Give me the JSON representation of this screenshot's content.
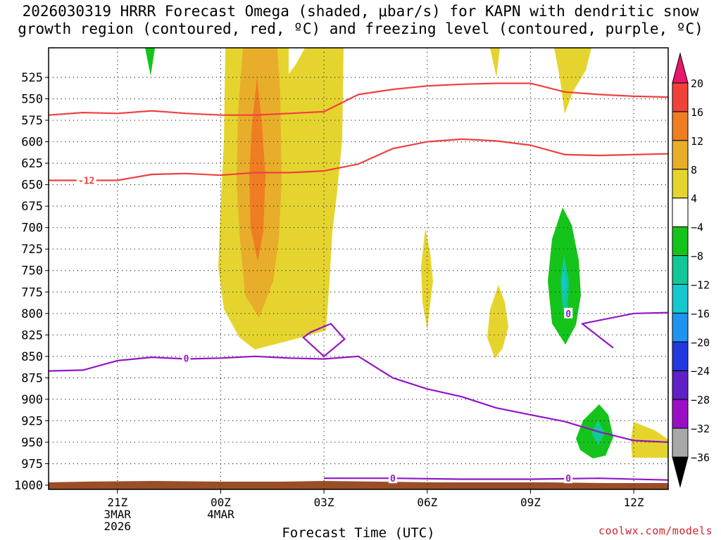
{
  "title": {
    "line1": "2026030319 HRRR Forecast Omega (shaded, μbar/s) for KAPN with dendritic snow",
    "line2": "growth region (contoured, red, ºC) and freezing level (contoured, purple, ºC)"
  },
  "credit": "coolwx.com/models",
  "chart_data": {
    "type": "time-height cross section (filled contour)",
    "title": "2026030319 HRRR Forecast Omega (shaded, μbar/s) for KAPN with dendritic snow growth region (contoured, red, ºC) and freezing level (contoured, purple, ºC)",
    "xlabel": "Forecast Time (UTC)",
    "ylabel": "",
    "x_range_hours_after_2026030319": [
      0,
      18
    ],
    "x_ticks": [
      {
        "hour": 2,
        "label": "21Z",
        "sub1": "3MAR",
        "sub2": "2026"
      },
      {
        "hour": 5,
        "label": "00Z",
        "sub1": "4MAR",
        "sub2": ""
      },
      {
        "hour": 8,
        "label": "03Z",
        "sub1": "",
        "sub2": ""
      },
      {
        "hour": 11,
        "label": "06Z",
        "sub1": "",
        "sub2": ""
      },
      {
        "hour": 14,
        "label": "09Z",
        "sub1": "",
        "sub2": ""
      },
      {
        "hour": 17,
        "label": "12Z",
        "sub1": "",
        "sub2": ""
      }
    ],
    "y_range_hPa": [
      1000,
      500
    ],
    "y_ticks": [
      "525",
      "550",
      "575",
      "600",
      "625",
      "650",
      "675",
      "700",
      "725",
      "750",
      "775",
      "800",
      "825",
      "850",
      "875",
      "900",
      "925",
      "950",
      "975",
      "1000"
    ],
    "colorbar": {
      "levels": [
        "20",
        "16",
        "12",
        "8",
        "4",
        "−4",
        "−8",
        "−12",
        "−16",
        "−20",
        "−24",
        "−28",
        "−32",
        "−36"
      ],
      "colors": [
        "#e8176a",
        "#f1423a",
        "#ef7e23",
        "#e8ae2b",
        "#e6d42e",
        "#ffffff",
        "#14c41a",
        "#12c896",
        "#15c8d0",
        "#1f93f0",
        "#2239e0",
        "#5f20c8",
        "#9a0fc6",
        "#a8a8a8",
        "#000000"
      ]
    },
    "contours": [
      {
        "name": "-12C (upper, dendritic)",
        "color": "#ef4040",
        "label": "",
        "points": [
          [
            0,
            569
          ],
          [
            1,
            566
          ],
          [
            2,
            567
          ],
          [
            3,
            564
          ],
          [
            4,
            567
          ],
          [
            5,
            569
          ],
          [
            6,
            569
          ],
          [
            7,
            567
          ],
          [
            8,
            565
          ],
          [
            9,
            545
          ],
          [
            10,
            539
          ],
          [
            11,
            535
          ],
          [
            12,
            533
          ],
          [
            13,
            532
          ],
          [
            14,
            532
          ],
          [
            15,
            542
          ],
          [
            16,
            545
          ],
          [
            17,
            547
          ],
          [
            18,
            548
          ]
        ]
      },
      {
        "name": "-12C (lower, dendritic)",
        "color": "#ef4040",
        "label": "-12",
        "points": [
          [
            0,
            645
          ],
          [
            1,
            645
          ],
          [
            2,
            645
          ],
          [
            3,
            638
          ],
          [
            4,
            637
          ],
          [
            5,
            639
          ],
          [
            6,
            636
          ],
          [
            7,
            636
          ],
          [
            8,
            634
          ],
          [
            9,
            626
          ],
          [
            10,
            608
          ],
          [
            11,
            600
          ],
          [
            12,
            597
          ],
          [
            13,
            599
          ],
          [
            14,
            604
          ],
          [
            15,
            615
          ],
          [
            16,
            616
          ],
          [
            17,
            615
          ],
          [
            18,
            614
          ]
        ]
      },
      {
        "name": "0C freezing level",
        "color": "#9316c6",
        "label": "0",
        "points": [
          [
            0,
            867
          ],
          [
            1,
            866
          ],
          [
            2,
            855
          ],
          [
            3,
            851
          ],
          [
            4,
            853
          ],
          [
            5,
            852
          ],
          [
            6,
            850
          ],
          [
            7,
            852
          ],
          [
            8,
            853
          ],
          [
            9,
            850
          ],
          [
            10,
            875
          ],
          [
            11,
            888
          ],
          [
            12,
            897
          ],
          [
            13,
            910
          ],
          [
            14,
            918
          ],
          [
            15,
            926
          ],
          [
            16,
            938
          ],
          [
            17,
            948
          ],
          [
            18,
            950
          ]
        ]
      },
      {
        "name": "0C freezing level (upper branch)",
        "color": "#9316c6",
        "label": "0",
        "points": [
          [
            16.4,
            840
          ],
          [
            15.5,
            812
          ],
          [
            17,
            800
          ],
          [
            18,
            799
          ]
        ]
      },
      {
        "name": "0C near surface",
        "color": "#9316c6",
        "label": "0",
        "points": [
          [
            8,
            992
          ],
          [
            10,
            992
          ],
          [
            12,
            993
          ],
          [
            14,
            993
          ],
          [
            16,
            992
          ],
          [
            18,
            994
          ]
        ]
      }
    ],
    "omega_features": [
      {
        "level": "4 to 8",
        "color": "#e6d42e",
        "description": "broad upward motion column ~00Z-03Z 4MAR, 500-800 hPa"
      },
      {
        "level": "8 to 12",
        "color": "#e8ae2b",
        "description": "core ~01Z, 520-760 hPa"
      },
      {
        "level": "12 to 16",
        "color": "#ef7e23",
        "description": "max ~01Z, 580-700 hPa"
      },
      {
        "level": "-4 to -8",
        "color": "#14c41a",
        "description": "subsidence ~10Z, 650-800 hPa and ~11Z 880-950 hPa"
      }
    ]
  }
}
